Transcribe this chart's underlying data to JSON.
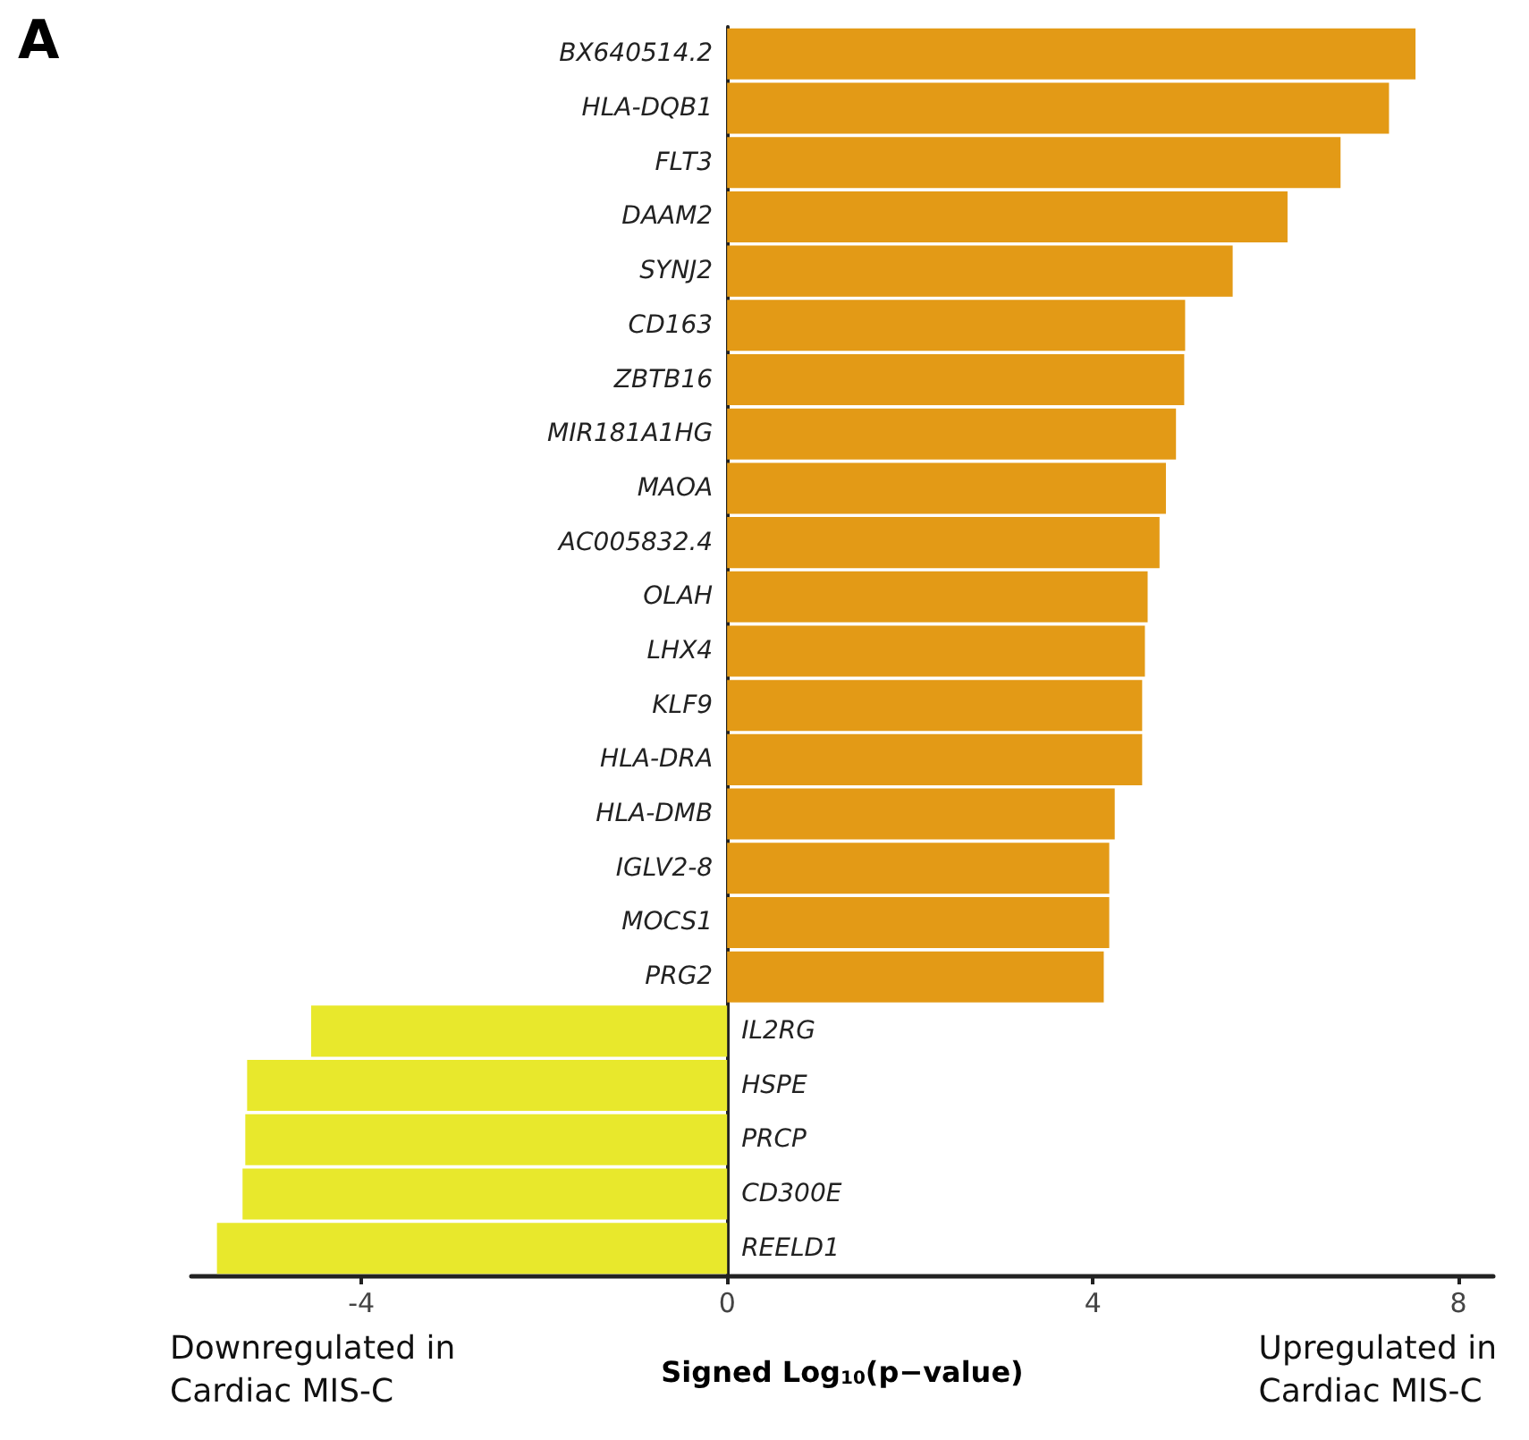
{
  "chart_data": {
    "type": "bar",
    "orientation": "horizontal",
    "title": "A",
    "xlabel": "Signed Log$_{10}$(p−value)",
    "annotations": [
      "Downregulated in\nCardiac MIS-C",
      "Upregulated in\nCardiac MIS-C"
    ],
    "categories": [
      "BX640514.2",
      "HLA-DQB1",
      "FLT3",
      "DAAM2",
      "SYNJ2",
      "CD163",
      "ZBTB16",
      "MIR181A1HG",
      "MAOA",
      "AC005832.4",
      "OLAH",
      "LHX4",
      "KLF9",
      "HLA-DRA",
      "HLA-DMB",
      "IGLV2-8",
      "MOCS1",
      "PRG2",
      "IL2RG",
      "HSPE",
      "PRCP",
      "CD300E",
      "REELD1"
    ],
    "values": [
      7.53,
      7.24,
      6.71,
      6.13,
      5.53,
      5.01,
      5.0,
      4.91,
      4.8,
      4.73,
      4.6,
      4.57,
      4.54,
      4.54,
      4.24,
      4.18,
      4.18,
      4.12,
      -4.55,
      -5.25,
      -5.27,
      -5.3,
      -5.58
    ],
    "colors": [
      "#e39a16",
      "#e39a16",
      "#e39a16",
      "#e39a16",
      "#e39a16",
      "#e39a16",
      "#e39a16",
      "#e39a16",
      "#e39a16",
      "#e39a16",
      "#e39a16",
      "#e39a16",
      "#e39a16",
      "#e39a16",
      "#e39a16",
      "#e39a16",
      "#e39a16",
      "#e39a16",
      "#e8e82c",
      "#e8e82c",
      "#e8e82c",
      "#e8e82c",
      "#e8e82c"
    ],
    "xlim": [
      -5.86,
      8.38
    ],
    "xticks": [
      -4,
      0,
      4,
      8
    ],
    "grid": false
  }
}
